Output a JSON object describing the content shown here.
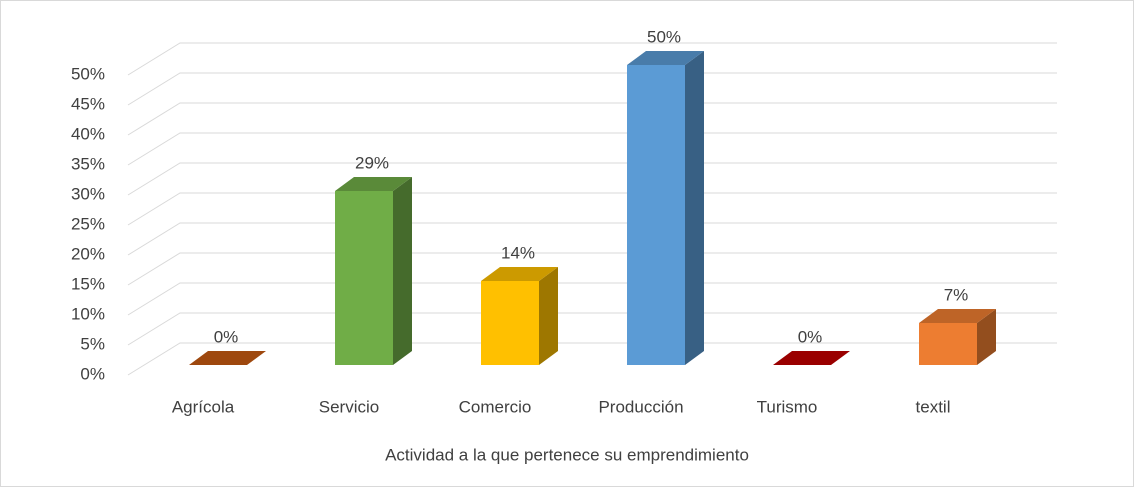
{
  "chart_data": {
    "type": "bar3d",
    "x_label": "Actividad a la que pertenece su emprendimiento",
    "categories": [
      "Agrícola",
      "Servicio",
      "Comercio",
      "Producción",
      "Turismo",
      "textil"
    ],
    "values": [
      0,
      29,
      14,
      50,
      0,
      7
    ],
    "value_labels": [
      "0%",
      "29%",
      "14%",
      "50%",
      "0%",
      "7%"
    ],
    "colors": [
      "#c55a11",
      "#70ad47",
      "#ffc000",
      "#5b9bd5",
      "#c00000",
      "#ed7d31"
    ],
    "ylim": [
      0,
      50
    ],
    "yticks": [
      {
        "value": 0,
        "label": "0%"
      },
      {
        "value": 5,
        "label": "5%"
      },
      {
        "value": 10,
        "label": "10%"
      },
      {
        "value": 15,
        "label": "15%"
      },
      {
        "value": 20,
        "label": "20%"
      },
      {
        "value": 25,
        "label": "25%"
      },
      {
        "value": 30,
        "label": "30%"
      },
      {
        "value": 35,
        "label": "35%"
      },
      {
        "value": 40,
        "label": "40%"
      },
      {
        "value": 45,
        "label": "45%"
      },
      {
        "value": 50,
        "label": "50%"
      }
    ],
    "grid": true
  }
}
